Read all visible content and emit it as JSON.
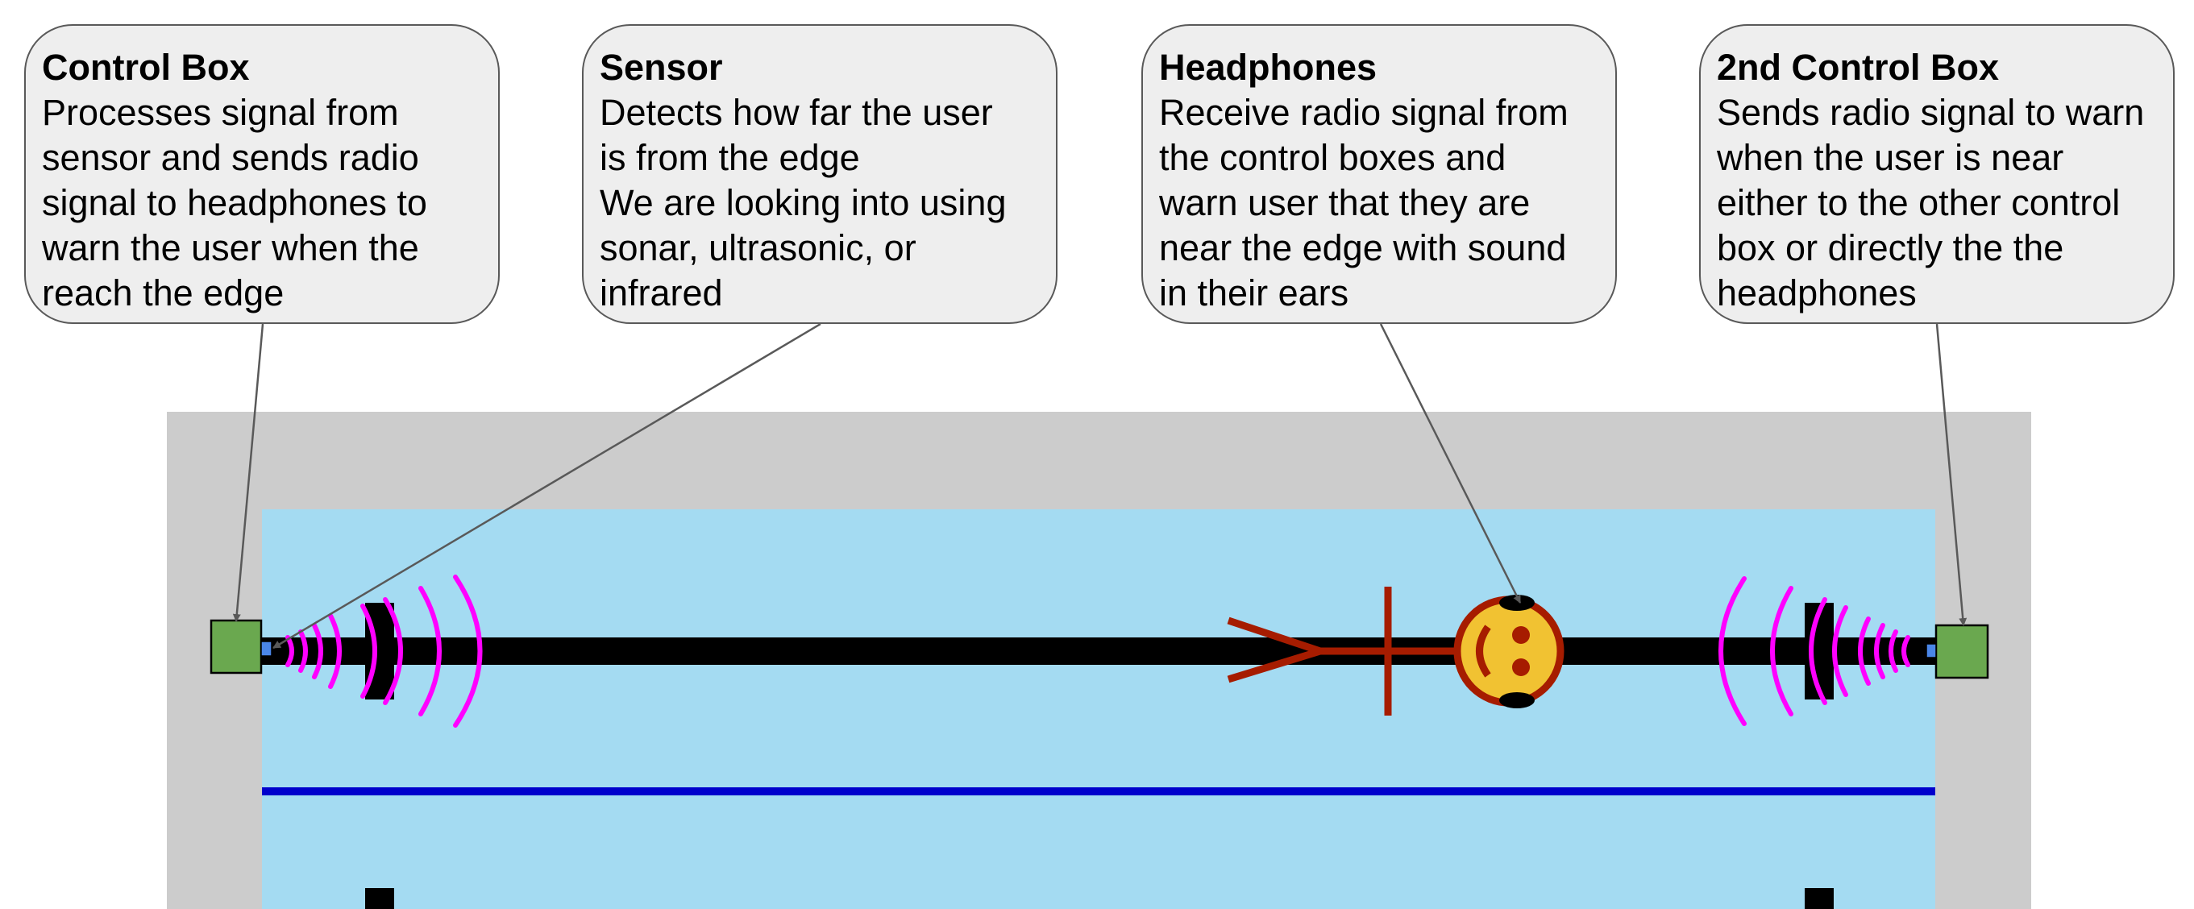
{
  "callouts": [
    {
      "title": "Control Box",
      "lines": [
        "Processes signal from",
        "sensor and sends radio",
        "signal to headphones to",
        "warn the user when the",
        "reach the edge"
      ]
    },
    {
      "title": "Sensor",
      "lines": [
        "Detects how far the user",
        "is from the edge",
        "We are looking into using",
        "sonar, ultrasonic, or",
        "infrared"
      ]
    },
    {
      "title": "Headphones",
      "lines": [
        "Receive radio signal from",
        "the control boxes and",
        "warn user that they are",
        "near the edge with sound",
        "in their ears"
      ]
    },
    {
      "title": "2nd Control Box",
      "lines": [
        "Sends radio signal to warn",
        "when the user is near",
        "either to the other control",
        "box or directly the the",
        "headphones"
      ]
    }
  ],
  "colors": {
    "deck": "#cccccc",
    "water": "#a4dbf2",
    "lane_rope": "#000000",
    "lane_line": "#0000cc",
    "control_box": "#6aa84f",
    "sensor": "#4a86e8",
    "signal_waves": "#ff00ff",
    "swimmer": "#a61c00",
    "face": "#f1c232",
    "callout_fill": "#eeeeee",
    "callout_border": "#595959"
  }
}
